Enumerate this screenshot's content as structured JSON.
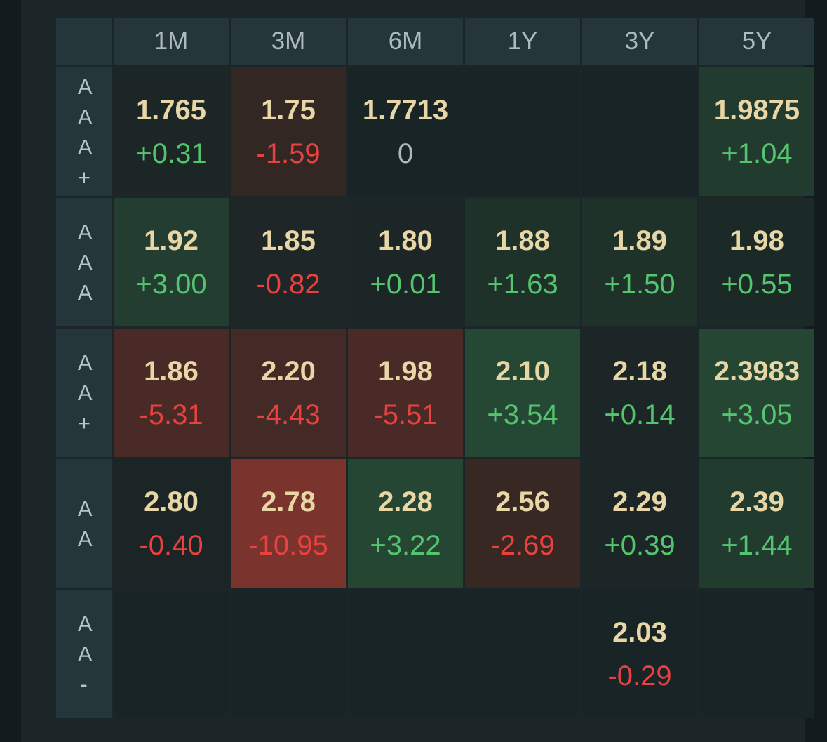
{
  "columns": [
    "1M",
    "3M",
    "6M",
    "1Y",
    "3Y",
    "5Y"
  ],
  "rows": [
    {
      "label": "AAA+",
      "cells": [
        {
          "price": "1.765",
          "change": "+0.31",
          "dir": "pos",
          "bg": "#1c2627"
        },
        {
          "price": "1.75",
          "change": "-1.59",
          "dir": "neg",
          "bg": "#332723"
        },
        {
          "price": "1.7713",
          "change": "0",
          "dir": "zero",
          "bg": "#182426"
        },
        {
          "price": "",
          "change": "",
          "dir": "",
          "bg": "#182426"
        },
        {
          "price": "",
          "change": "",
          "dir": "",
          "bg": "#182426"
        },
        {
          "price": "1.9875",
          "change": "+1.04",
          "dir": "pos",
          "bg": "#213b2f"
        }
      ]
    },
    {
      "label": "AAA",
      "cells": [
        {
          "price": "1.92",
          "change": "+3.00",
          "dir": "pos",
          "bg": "#233e31"
        },
        {
          "price": "1.85",
          "change": "-0.82",
          "dir": "neg",
          "bg": "#1f2627"
        },
        {
          "price": "1.80",
          "change": "+0.01",
          "dir": "pos",
          "bg": "#1c2627"
        },
        {
          "price": "1.88",
          "change": "+1.63",
          "dir": "pos",
          "bg": "#1e3229"
        },
        {
          "price": "1.89",
          "change": "+1.50",
          "dir": "pos",
          "bg": "#1e3229"
        },
        {
          "price": "1.98",
          "change": "+0.55",
          "dir": "pos",
          "bg": "#1c2a27"
        }
      ]
    },
    {
      "label": "AA+",
      "cells": [
        {
          "price": "1.86",
          "change": "-5.31",
          "dir": "neg",
          "bg": "#4a2a26"
        },
        {
          "price": "2.20",
          "change": "-4.43",
          "dir": "neg",
          "bg": "#442a26"
        },
        {
          "price": "1.98",
          "change": "-5.51",
          "dir": "neg",
          "bg": "#4a2a26"
        },
        {
          "price": "2.10",
          "change": "+3.54",
          "dir": "pos",
          "bg": "#254834"
        },
        {
          "price": "2.18",
          "change": "+0.14",
          "dir": "pos",
          "bg": "#1c2627"
        },
        {
          "price": "2.3983",
          "change": "+3.05",
          "dir": "pos",
          "bg": "#244633"
        }
      ]
    },
    {
      "label": "AA",
      "cells": [
        {
          "price": "2.80",
          "change": "-0.40",
          "dir": "neg",
          "bg": "#1c2526"
        },
        {
          "price": "2.78",
          "change": "-10.95",
          "dir": "neg",
          "bg": "#7a342d"
        },
        {
          "price": "2.28",
          "change": "+3.22",
          "dir": "pos",
          "bg": "#244633"
        },
        {
          "price": "2.56",
          "change": "-2.69",
          "dir": "neg",
          "bg": "#372823"
        },
        {
          "price": "2.29",
          "change": "+0.39",
          "dir": "pos",
          "bg": "#1c2627"
        },
        {
          "price": "2.39",
          "change": "+1.44",
          "dir": "pos",
          "bg": "#213b2f"
        }
      ]
    },
    {
      "label": "AA-",
      "cells": [
        {
          "price": "",
          "change": "",
          "dir": "",
          "bg": "#182426"
        },
        {
          "price": "",
          "change": "",
          "dir": "",
          "bg": "#182426"
        },
        {
          "price": "",
          "change": "",
          "dir": "",
          "bg": "#182426"
        },
        {
          "price": "",
          "change": "",
          "dir": "",
          "bg": "#182426"
        },
        {
          "price": "2.03",
          "change": "-0.29",
          "dir": "neg",
          "bg": "#182426"
        },
        {
          "price": "",
          "change": "",
          "dir": "",
          "bg": "#182426"
        }
      ]
    }
  ]
}
